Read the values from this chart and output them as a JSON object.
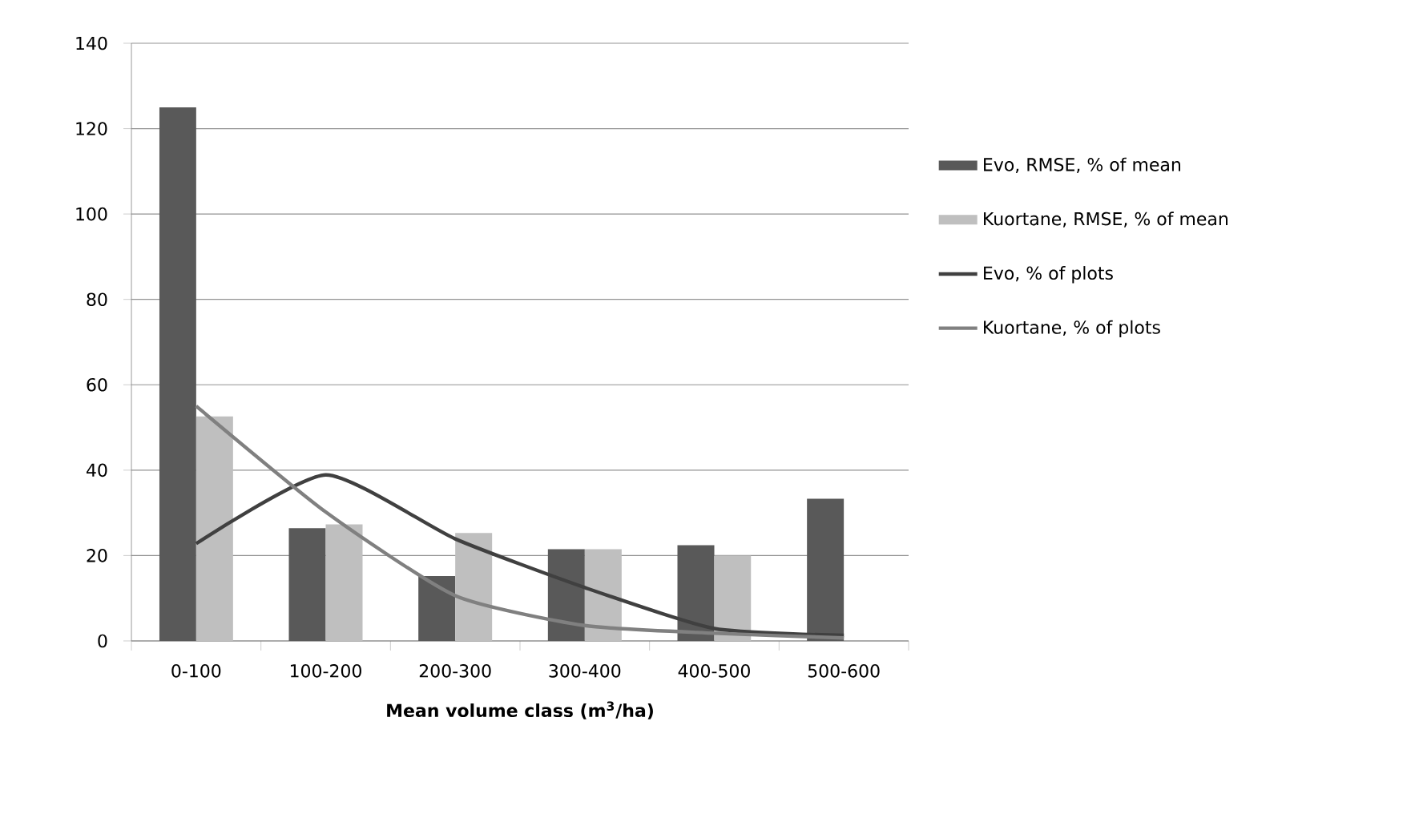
{
  "chart_data": {
    "type": "bar",
    "xlabel": "Mean volume class (m$^{3}$/ha)",
    "categories": [
      "0-100",
      "100-200",
      "200-300",
      "300-400",
      "400-500",
      "500-600"
    ],
    "series": [
      {
        "name": "Evo, RMSE, % of mean",
        "color": "#595959",
        "values": [
          125,
          26.4,
          15.2,
          21.5,
          22.4,
          33.3
        ]
      },
      {
        "name": "Kuortane, RMSE, % of mean",
        "color": "#bfbfbf",
        "values": [
          52.6,
          27.3,
          25.3,
          21.5,
          20,
          null
        ]
      },
      {
        "name": "Evo, % of plots",
        "type": "line",
        "color": "#404040",
        "values": [
          22.8,
          38.9,
          23.9,
          12.5,
          2.9,
          1.3
        ]
      },
      {
        "name": "Kuortane, % of plots",
        "type": "line",
        "color": "#808080",
        "values": [
          55,
          30.2,
          10.6,
          3.6,
          1.8,
          0.7
        ]
      }
    ],
    "ylim": [
      0,
      140
    ],
    "yticks": [
      0,
      20,
      40,
      60,
      80,
      100,
      120,
      140
    ],
    "grid": "y",
    "legend": "right",
    "marker": "none",
    "line_style": "solid"
  }
}
